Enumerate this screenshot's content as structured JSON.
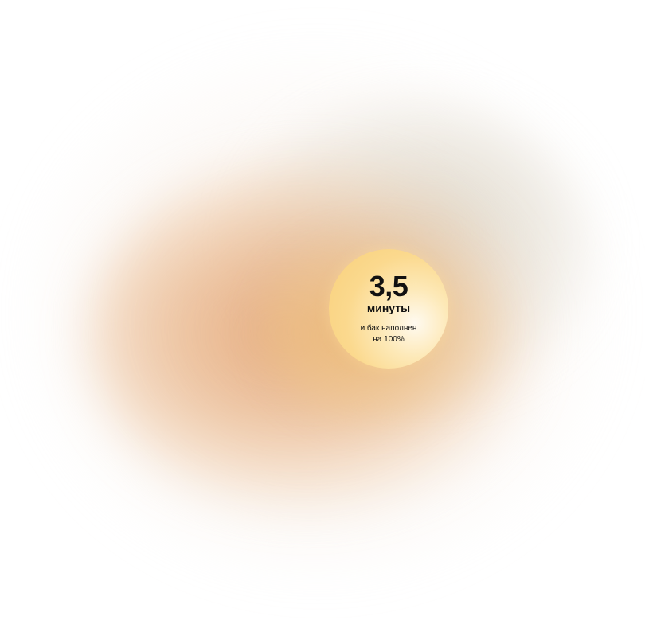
{
  "badge": {
    "value": "3,5",
    "unit": "минуты",
    "caption_line1": "и бак наполнен",
    "caption_line2": "на 100%"
  },
  "colors": {
    "bubble_fill": "#fbd98e",
    "glow_warm": "#e2a06e",
    "glow_grey": "#d6cebe",
    "text": "#111111"
  }
}
